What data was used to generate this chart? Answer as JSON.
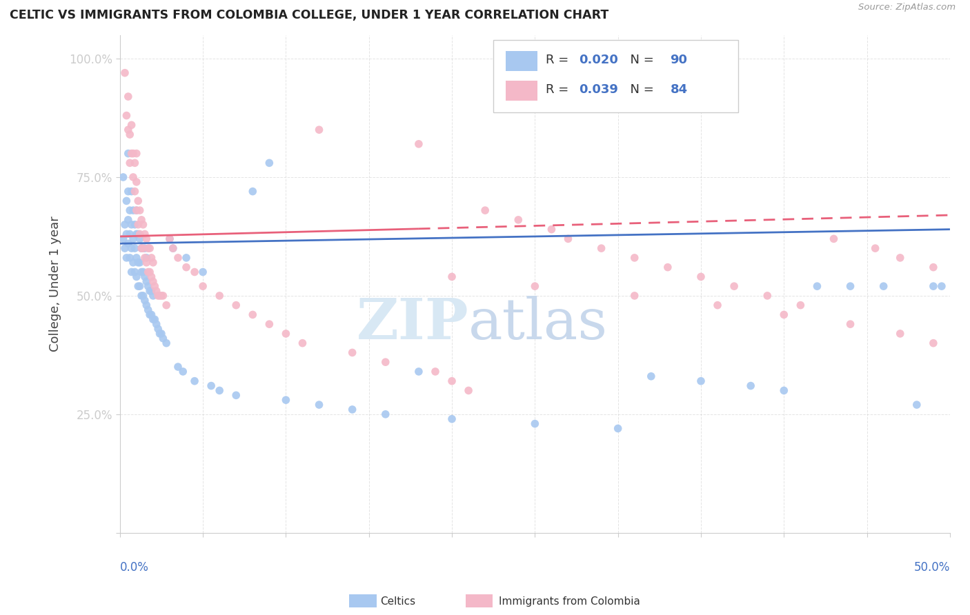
{
  "title": "CELTIC VS IMMIGRANTS FROM COLOMBIA COLLEGE, UNDER 1 YEAR CORRELATION CHART",
  "source": "Source: ZipAtlas.com",
  "ylabel": "College, Under 1 year",
  "xrange": [
    0,
    0.5
  ],
  "yrange": [
    0,
    1.05
  ],
  "celtics_color": "#A8C8F0",
  "colombia_color": "#F4B8C8",
  "celtics_line_color": "#4472C4",
  "colombia_line_color": "#E8607A",
  "celtics_R": 0.02,
  "celtics_N": 90,
  "colombia_R": 0.039,
  "colombia_N": 84,
  "celtics_trend": [
    0.61,
    0.64
  ],
  "colombia_trend": [
    0.625,
    0.67
  ],
  "colombia_trend_switch": 0.18,
  "celtics_x": [
    0.002,
    0.002,
    0.003,
    0.003,
    0.004,
    0.004,
    0.004,
    0.005,
    0.005,
    0.005,
    0.005,
    0.006,
    0.006,
    0.006,
    0.007,
    0.007,
    0.007,
    0.007,
    0.008,
    0.008,
    0.008,
    0.009,
    0.009,
    0.009,
    0.01,
    0.01,
    0.01,
    0.01,
    0.011,
    0.011,
    0.011,
    0.012,
    0.012,
    0.012,
    0.013,
    0.013,
    0.013,
    0.014,
    0.014,
    0.015,
    0.015,
    0.015,
    0.016,
    0.016,
    0.016,
    0.017,
    0.017,
    0.018,
    0.018,
    0.019,
    0.019,
    0.02,
    0.02,
    0.021,
    0.022,
    0.023,
    0.024,
    0.025,
    0.026,
    0.028,
    0.03,
    0.032,
    0.035,
    0.038,
    0.04,
    0.045,
    0.05,
    0.055,
    0.06,
    0.07,
    0.08,
    0.09,
    0.1,
    0.12,
    0.14,
    0.16,
    0.18,
    0.2,
    0.25,
    0.3,
    0.32,
    0.35,
    0.38,
    0.4,
    0.42,
    0.44,
    0.46,
    0.48,
    0.49,
    0.495
  ],
  "celtics_y": [
    0.62,
    0.75,
    0.6,
    0.65,
    0.58,
    0.63,
    0.7,
    0.61,
    0.66,
    0.72,
    0.8,
    0.58,
    0.63,
    0.68,
    0.55,
    0.6,
    0.65,
    0.72,
    0.57,
    0.62,
    0.68,
    0.55,
    0.6,
    0.65,
    0.54,
    0.58,
    0.63,
    0.68,
    0.52,
    0.57,
    0.63,
    0.52,
    0.57,
    0.62,
    0.5,
    0.55,
    0.6,
    0.5,
    0.55,
    0.49,
    0.54,
    0.6,
    0.48,
    0.53,
    0.58,
    0.47,
    0.52,
    0.46,
    0.51,
    0.46,
    0.51,
    0.45,
    0.5,
    0.45,
    0.44,
    0.43,
    0.42,
    0.42,
    0.41,
    0.4,
    0.62,
    0.6,
    0.35,
    0.34,
    0.58,
    0.32,
    0.55,
    0.31,
    0.3,
    0.29,
    0.72,
    0.78,
    0.28,
    0.27,
    0.26,
    0.25,
    0.34,
    0.24,
    0.23,
    0.22,
    0.33,
    0.32,
    0.31,
    0.3,
    0.52,
    0.52,
    0.52,
    0.27,
    0.52,
    0.52
  ],
  "colombia_x": [
    0.003,
    0.004,
    0.005,
    0.005,
    0.006,
    0.006,
    0.007,
    0.007,
    0.008,
    0.008,
    0.009,
    0.009,
    0.01,
    0.01,
    0.01,
    0.011,
    0.011,
    0.012,
    0.012,
    0.013,
    0.013,
    0.014,
    0.014,
    0.015,
    0.015,
    0.016,
    0.016,
    0.017,
    0.017,
    0.018,
    0.018,
    0.019,
    0.019,
    0.02,
    0.02,
    0.021,
    0.022,
    0.023,
    0.024,
    0.025,
    0.026,
    0.028,
    0.03,
    0.032,
    0.035,
    0.04,
    0.045,
    0.05,
    0.06,
    0.07,
    0.08,
    0.09,
    0.1,
    0.11,
    0.12,
    0.14,
    0.16,
    0.18,
    0.19,
    0.2,
    0.21,
    0.22,
    0.24,
    0.26,
    0.27,
    0.29,
    0.31,
    0.33,
    0.35,
    0.37,
    0.39,
    0.41,
    0.43,
    0.455,
    0.47,
    0.49,
    0.2,
    0.25,
    0.31,
    0.36,
    0.4,
    0.44,
    0.47,
    0.49
  ],
  "colombia_y": [
    0.97,
    0.88,
    0.85,
    0.92,
    0.78,
    0.84,
    0.8,
    0.86,
    0.75,
    0.8,
    0.72,
    0.78,
    0.68,
    0.74,
    0.8,
    0.65,
    0.7,
    0.63,
    0.68,
    0.6,
    0.66,
    0.6,
    0.65,
    0.58,
    0.63,
    0.57,
    0.62,
    0.55,
    0.6,
    0.55,
    0.6,
    0.54,
    0.58,
    0.53,
    0.57,
    0.52,
    0.51,
    0.5,
    0.5,
    0.5,
    0.5,
    0.48,
    0.62,
    0.6,
    0.58,
    0.56,
    0.55,
    0.52,
    0.5,
    0.48,
    0.46,
    0.44,
    0.42,
    0.4,
    0.85,
    0.38,
    0.36,
    0.82,
    0.34,
    0.32,
    0.3,
    0.68,
    0.66,
    0.64,
    0.62,
    0.6,
    0.58,
    0.56,
    0.54,
    0.52,
    0.5,
    0.48,
    0.62,
    0.6,
    0.58,
    0.56,
    0.54,
    0.52,
    0.5,
    0.48,
    0.46,
    0.44,
    0.42,
    0.4
  ]
}
